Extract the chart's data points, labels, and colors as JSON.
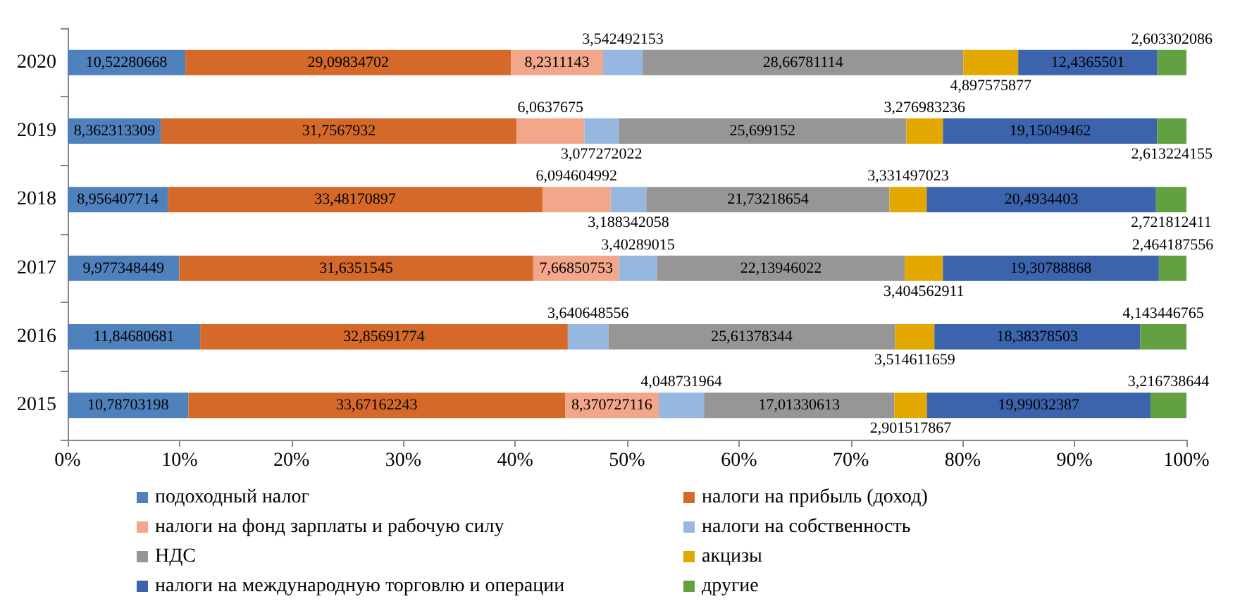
{
  "chart_data": {
    "type": "bar",
    "orientation": "horizontal",
    "stacked": true,
    "grid": false,
    "legend": "bottom",
    "categories": [
      "2020",
      "2019",
      "2018",
      "2017",
      "2016",
      "2015"
    ],
    "xlim": [
      0,
      100
    ],
    "xticks": [
      {
        "value": 0,
        "label": "0%"
      },
      {
        "value": 10,
        "label": "10%"
      },
      {
        "value": 20,
        "label": "20%"
      },
      {
        "value": 30,
        "label": "30%"
      },
      {
        "value": 40,
        "label": "40%"
      },
      {
        "value": 50,
        "label": "50%"
      },
      {
        "value": 60,
        "label": "60%"
      },
      {
        "value": 70,
        "label": "70%"
      },
      {
        "value": 80,
        "label": "80%"
      },
      {
        "value": 90,
        "label": "90%"
      },
      {
        "value": 100,
        "label": "100%"
      }
    ],
    "series": [
      {
        "name": "подоходный налог",
        "color": "#4f81bd",
        "values": [
          10.52280668,
          8.362313309,
          8.956407714,
          9.977348449,
          11.84680681,
          10.78703198
        ],
        "value_labels": [
          "10,52280668",
          "8,362313309",
          "8,956407714",
          "9,977348449",
          "11,84680681",
          "10,78703198"
        ]
      },
      {
        "name": "налоги на прибыль (доход)",
        "color": "#d4692a",
        "values": [
          29.09834702,
          31.7567932,
          33.48170897,
          31.6351545,
          32.85691774,
          33.67162243
        ],
        "value_labels": [
          "29,09834702",
          "31,7567932",
          "33,48170897",
          "31,6351545",
          "32,85691774",
          "33,67162243"
        ]
      },
      {
        "name": "налоги на фонд зарплаты и рабочую силу",
        "color": "#f2a68a",
        "values": [
          8.2311143,
          6.0637675,
          6.094604992,
          7.66850753,
          null,
          8.370727116
        ],
        "value_labels": [
          "8,2311143",
          "6,0637675",
          "6,094604992",
          "7,66850753",
          null,
          "8,370727116"
        ]
      },
      {
        "name": "налоги на собственность",
        "color": "#95b7e0",
        "values": [
          3.542492153,
          3.077272022,
          3.188342058,
          3.40289015,
          3.640648556,
          4.048731964
        ],
        "value_labels": [
          "3,542492153",
          "3,077272022",
          "3,188342058",
          "3,40289015",
          "3,640648556",
          "4,048731964"
        ]
      },
      {
        "name": "НДС",
        "color": "#969696",
        "values": [
          28.66781114,
          25.699152,
          21.73218654,
          22.13946022,
          25.61378344,
          17.01330613
        ],
        "value_labels": [
          "28,66781114",
          "25,699152",
          "21,73218654",
          "22,13946022",
          "25,61378344",
          "17,01330613"
        ]
      },
      {
        "name": "акцизы",
        "color": "#e3a800",
        "values": [
          4.897575877,
          3.276983236,
          3.331497023,
          3.404562911,
          3.514611659,
          2.901517867
        ],
        "value_labels": [
          "4,897575877",
          "3,276983236",
          "3,331497023",
          "3,404562911",
          "3,514611659",
          "2,901517867"
        ]
      },
      {
        "name": "налоги на международную торговлю и операции",
        "color": "#3b64ad",
        "values": [
          12.4365501,
          19.15049462,
          20.4934403,
          19.30788868,
          18.38378503,
          19.99032387
        ],
        "value_labels": [
          "12,4365501",
          "19,15049462",
          "20,4934403",
          "19,30788868",
          "18,38378503",
          "19,99032387"
        ]
      },
      {
        "name": "другие",
        "color": "#62a041",
        "values": [
          2.603302086,
          2.613224155,
          2.721812411,
          2.464187556,
          4.143446765,
          3.216738644
        ],
        "value_labels": [
          "2,603302086",
          "2,613224155",
          "2,721812411",
          "2,464187556",
          "4,143446765",
          "3,216738644"
        ]
      }
    ]
  }
}
